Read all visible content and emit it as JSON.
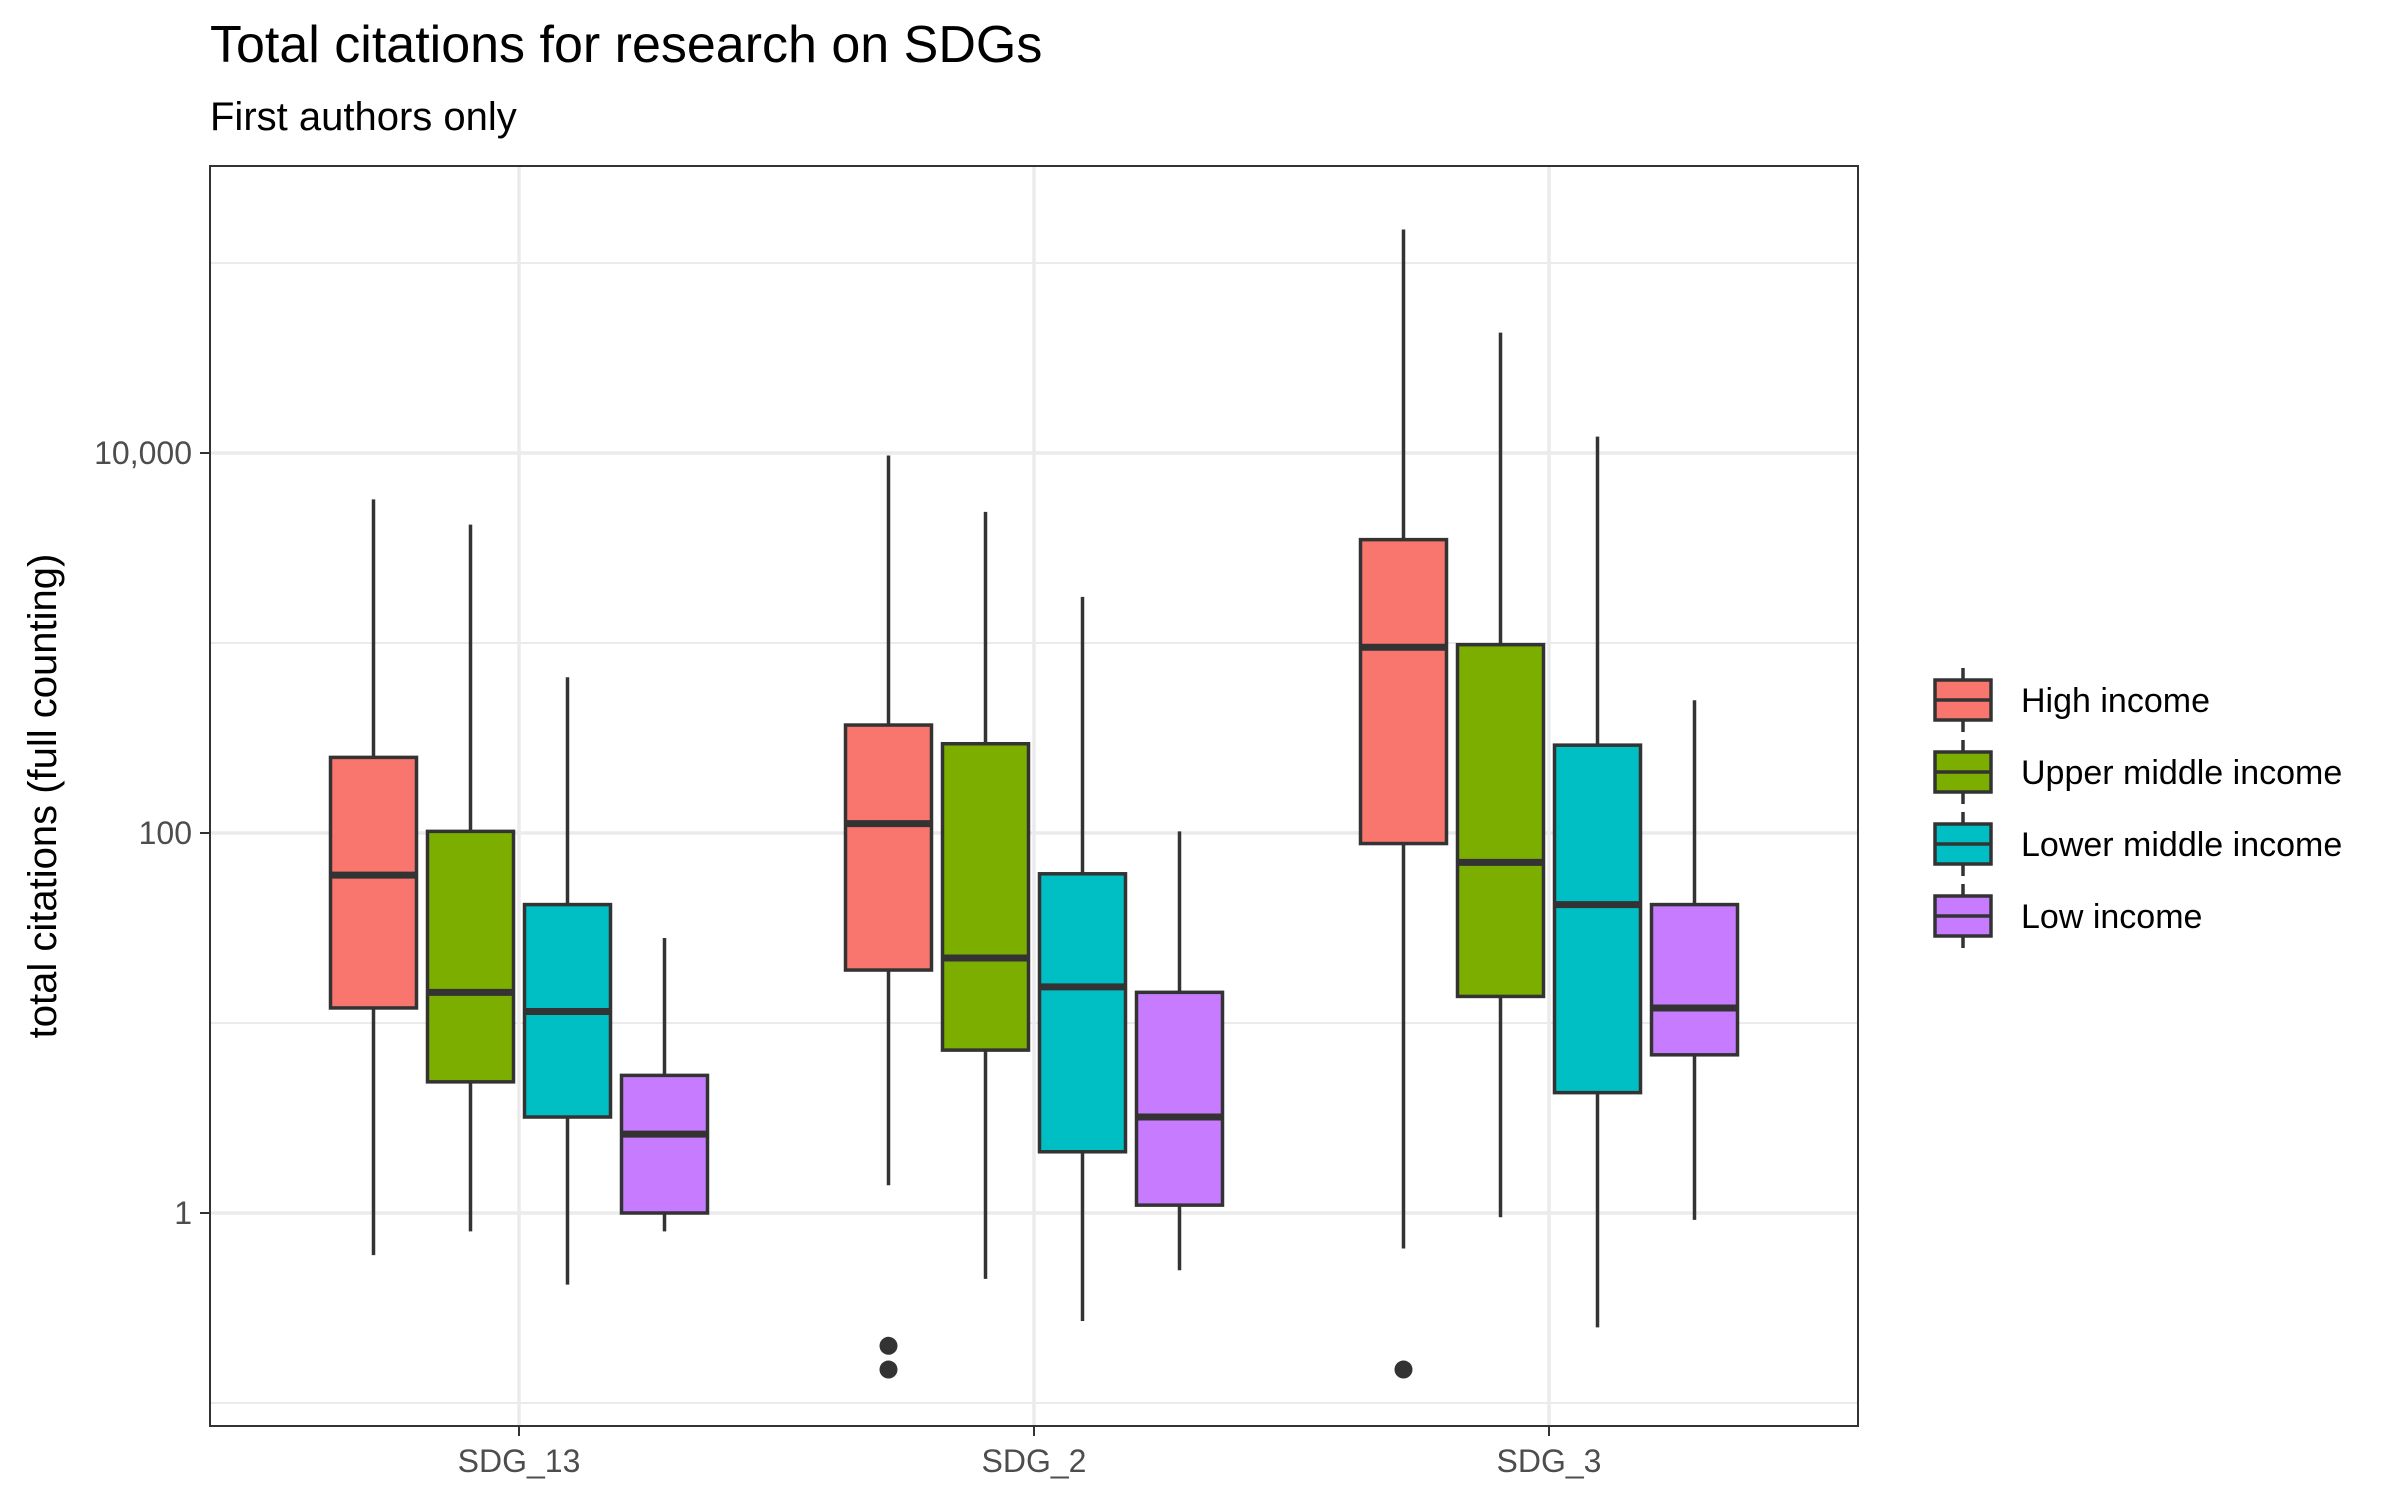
{
  "chart_data": {
    "type": "boxplot",
    "title": "Total citations for research on SDGs",
    "subtitle": "First authors only",
    "xlabel": "",
    "ylabel": "total citations (full counting)",
    "y_scale": "log10",
    "ylim": [
      0.1,
      200000
    ],
    "y_ticks": [
      {
        "value": 1,
        "label": "1"
      },
      {
        "value": 100,
        "label": "100"
      },
      {
        "value": 10000,
        "label": "10,000"
      }
    ],
    "y_minor_gridlines": [
      0.1,
      10,
      1000,
      100000
    ],
    "grid": true,
    "legend_position": "right",
    "categories": [
      "SDG_13",
      "SDG_2",
      "SDG_3"
    ],
    "series": [
      {
        "name": "High income",
        "color": "#F8766D",
        "boxes": [
          {
            "whisker_low": 0.6,
            "q1": 12,
            "median": 60,
            "q3": 250,
            "whisker_high": 5700,
            "outliers": []
          },
          {
            "whisker_low": 1.4,
            "q1": 19,
            "median": 112,
            "q3": 370,
            "whisker_high": 9700,
            "outliers": [
              0.2,
              0.15
            ]
          },
          {
            "whisker_low": 0.65,
            "q1": 88,
            "median": 950,
            "q3": 3500,
            "whisker_high": 150000,
            "outliers": [
              0.15
            ]
          }
        ]
      },
      {
        "name": "Upper middle income",
        "color": "#7CAE00",
        "boxes": [
          {
            "whisker_low": 0.8,
            "q1": 4.9,
            "median": 14.5,
            "q3": 102,
            "whisker_high": 4200,
            "outliers": []
          },
          {
            "whisker_low": 0.45,
            "q1": 7.2,
            "median": 22,
            "q3": 295,
            "whisker_high": 4900,
            "outliers": []
          },
          {
            "whisker_low": 0.95,
            "q1": 13.8,
            "median": 70,
            "q3": 980,
            "whisker_high": 43000,
            "outliers": []
          }
        ]
      },
      {
        "name": "Lower middle income",
        "color": "#00BFC4",
        "boxes": [
          {
            "whisker_low": 0.42,
            "q1": 3.2,
            "median": 11.5,
            "q3": 42,
            "whisker_high": 660,
            "outliers": []
          },
          {
            "whisker_low": 0.27,
            "q1": 2.1,
            "median": 15.5,
            "q3": 61,
            "whisker_high": 1750,
            "outliers": []
          },
          {
            "whisker_low": 0.25,
            "q1": 4.3,
            "median": 42,
            "q3": 290,
            "whisker_high": 12200,
            "outliers": []
          }
        ]
      },
      {
        "name": "Low income",
        "color": "#C77CFF",
        "boxes": [
          {
            "whisker_low": 0.8,
            "q1": 1,
            "median": 2.6,
            "q3": 5.3,
            "whisker_high": 28,
            "outliers": []
          },
          {
            "whisker_low": 0.5,
            "q1": 1.1,
            "median": 3.2,
            "q3": 14.5,
            "whisker_high": 102,
            "outliers": []
          },
          {
            "whisker_low": 0.92,
            "q1": 6.8,
            "median": 12,
            "q3": 42,
            "whisker_high": 500,
            "outliers": []
          }
        ]
      }
    ]
  }
}
